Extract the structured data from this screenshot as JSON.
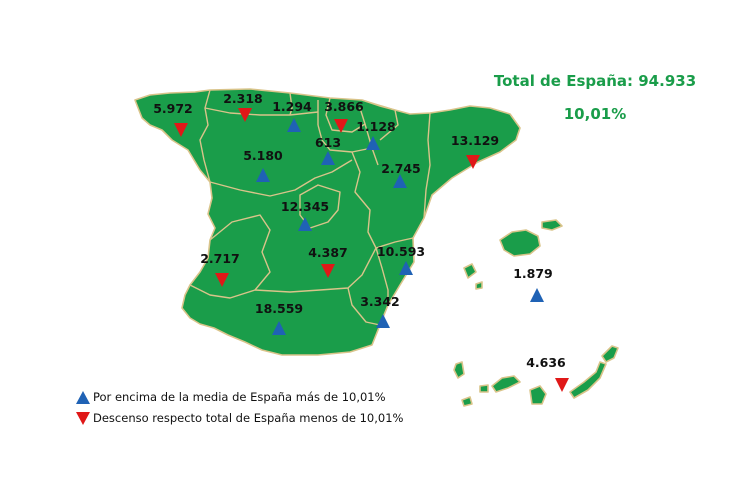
{
  "colors": {
    "land": "#1a9d4a",
    "border": "#d9c48a",
    "up": "#1f62b5",
    "down": "#e01818",
    "headline": "#1a9d4a"
  },
  "header": {
    "total": "Total de España: 94.933",
    "percent": "10,01%"
  },
  "regions": [
    {
      "id": "galicia",
      "value": "5.972",
      "trend": "down"
    },
    {
      "id": "asturias",
      "value": "2.318",
      "trend": "down"
    },
    {
      "id": "cantabria",
      "value": "1.294",
      "trend": "up"
    },
    {
      "id": "pais-vasco",
      "value": "3.866",
      "trend": "down"
    },
    {
      "id": "navarra",
      "value": "1.128",
      "trend": "up"
    },
    {
      "id": "la-rioja",
      "value": "613",
      "trend": "up"
    },
    {
      "id": "cataluna",
      "value": "13.129",
      "trend": "down"
    },
    {
      "id": "castilla-y-leon",
      "value": "5.180",
      "trend": "up"
    },
    {
      "id": "aragon",
      "value": "2.745",
      "trend": "up"
    },
    {
      "id": "madrid",
      "value": "12.345",
      "trend": "up"
    },
    {
      "id": "extremadura",
      "value": "2.717",
      "trend": "down"
    },
    {
      "id": "castilla-la-mancha",
      "value": "4.387",
      "trend": "down"
    },
    {
      "id": "comunidad-valenciana",
      "value": "10.593",
      "trend": "up"
    },
    {
      "id": "baleares",
      "value": "1.879",
      "trend": "up"
    },
    {
      "id": "andalucia",
      "value": "18.559",
      "trend": "up"
    },
    {
      "id": "murcia",
      "value": "3.342",
      "trend": "up"
    },
    {
      "id": "canarias",
      "value": "4.636",
      "trend": "down"
    }
  ],
  "legend": {
    "up": "Por encima de la media de España más de 10,01%",
    "down": "Descenso respecto total de España menos de 10,01%"
  }
}
